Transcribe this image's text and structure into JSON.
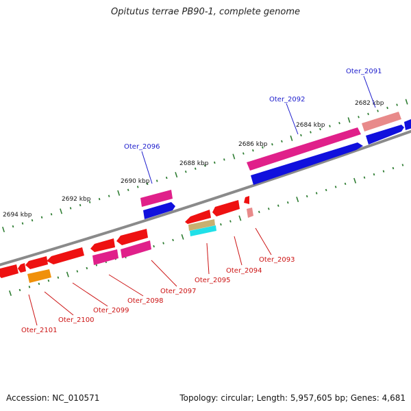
{
  "header": {
    "title": "Opitutus terrae PB90-1, complete genome"
  },
  "footer": {
    "accession": "Accession: NC_010571",
    "topology": "Topology: circular; Length: 5,957,605 bp; Genes: 4,681"
  },
  "scale_labels": [
    "2682 kbp",
    "2684 kbp",
    "2686 kbp",
    "2688 kbp",
    "2690 kbp",
    "2692 kbp",
    "2694 kbp"
  ],
  "gene_labels_top": [
    "Oter_2091",
    "Oter_2092",
    "Oter_2096"
  ],
  "gene_labels_bottom": [
    "Oter_2093",
    "Oter_2094",
    "Oter_2095",
    "Oter_2097",
    "Oter_2098",
    "Oter_2099",
    "Oter_2100",
    "Oter_2101"
  ],
  "colors": {
    "backbone": "#8a8a8a",
    "tick": "#2e7d32",
    "label_top": "#1a1acc",
    "label_bottom": "#cc1111",
    "gene_blue": "#1010dd",
    "gene_magenta": "#e0208a",
    "gene_pink": "#e88a8a",
    "gene_red": "#ee1111",
    "gene_orange": "#f0900a",
    "gene_cyan": "#20e0e8",
    "gene_khaki": "#c8b070"
  }
}
